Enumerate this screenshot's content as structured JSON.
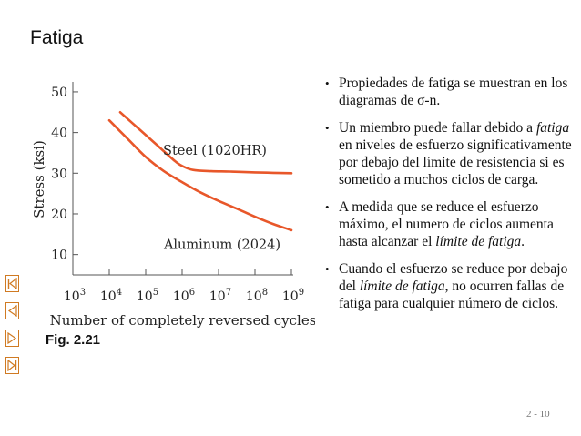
{
  "slide": {
    "title": "Fatiga",
    "page_number": "2 - 10"
  },
  "figure": {
    "caption": "Fig. 2.21"
  },
  "chart_data": {
    "type": "line",
    "title": "",
    "xlabel": "Number of completely reversed cycles",
    "ylabel": "Stress (ksi)",
    "x_scale": "log",
    "xlim_exponent": [
      3,
      9
    ],
    "x_ticks": [
      {
        "base": "10",
        "exp": "3"
      },
      {
        "base": "10",
        "exp": "4"
      },
      {
        "base": "10",
        "exp": "5"
      },
      {
        "base": "10",
        "exp": "6"
      },
      {
        "base": "10",
        "exp": "7"
      },
      {
        "base": "10",
        "exp": "8"
      },
      {
        "base": "10",
        "exp": "9"
      }
    ],
    "ylim": [
      5,
      52
    ],
    "y_ticks": [
      "10",
      "20",
      "30",
      "40",
      "50"
    ],
    "grid": false,
    "series": [
      {
        "name": "Steel (1020HR)",
        "color": "#e8572a",
        "x_exponent": [
          4.3,
          4.8,
          5.3,
          5.8,
          6.0,
          6.3,
          6.8,
          7.3,
          8.0,
          8.5,
          9.0
        ],
        "y": [
          45,
          41,
          37,
          33,
          31.8,
          30.8,
          30.5,
          30.4,
          30.2,
          30.1,
          30.0
        ]
      },
      {
        "name": "Aluminum (2024)",
        "color": "#e8572a",
        "x_exponent": [
          4.0,
          4.5,
          5.0,
          5.5,
          6.0,
          6.5,
          7.0,
          7.5,
          8.0,
          8.5,
          9.0
        ],
        "y": [
          43,
          38.5,
          34,
          30.5,
          27.8,
          25.3,
          23.2,
          21.3,
          19.3,
          17.5,
          16.0
        ]
      }
    ]
  },
  "bullets": [
    {
      "parts": [
        {
          "t": "Propiedades de fatiga se muestran en los diagramas de σ-n.",
          "i": false
        }
      ]
    },
    {
      "parts": [
        {
          "t": "Un miembro puede fallar debido a ",
          "i": false
        },
        {
          "t": "fatiga",
          "i": true
        },
        {
          "t": " en niveles de esfuerzo significativamente por debajo del límite de resistencia si es sometido a muchos ciclos de carga.",
          "i": false
        }
      ]
    },
    {
      "parts": [
        {
          "t": "A medida que se reduce el esfuerzo máximo, el numero de ciclos aumenta hasta alcanzar el ",
          "i": false
        },
        {
          "t": "límite de fatiga",
          "i": true
        },
        {
          "t": ".",
          "i": false
        }
      ]
    },
    {
      "parts": [
        {
          "t": "Cuando el esfuerzo se reduce por debajo del ",
          "i": false
        },
        {
          "t": "límite de fatiga",
          "i": true
        },
        {
          "t": ", no ocurren fallas de fatiga para cualquier número de ciclos.",
          "i": false
        }
      ]
    }
  ],
  "nav_buttons": [
    {
      "name": "first-slide-button",
      "icon": "first-icon"
    },
    {
      "name": "previous-slide-button",
      "icon": "previous-icon"
    },
    {
      "name": "next-slide-button",
      "icon": "next-icon"
    },
    {
      "name": "last-slide-button",
      "icon": "last-icon"
    }
  ],
  "colors": {
    "accent": "#d07a22",
    "curve": "#e8572a"
  }
}
